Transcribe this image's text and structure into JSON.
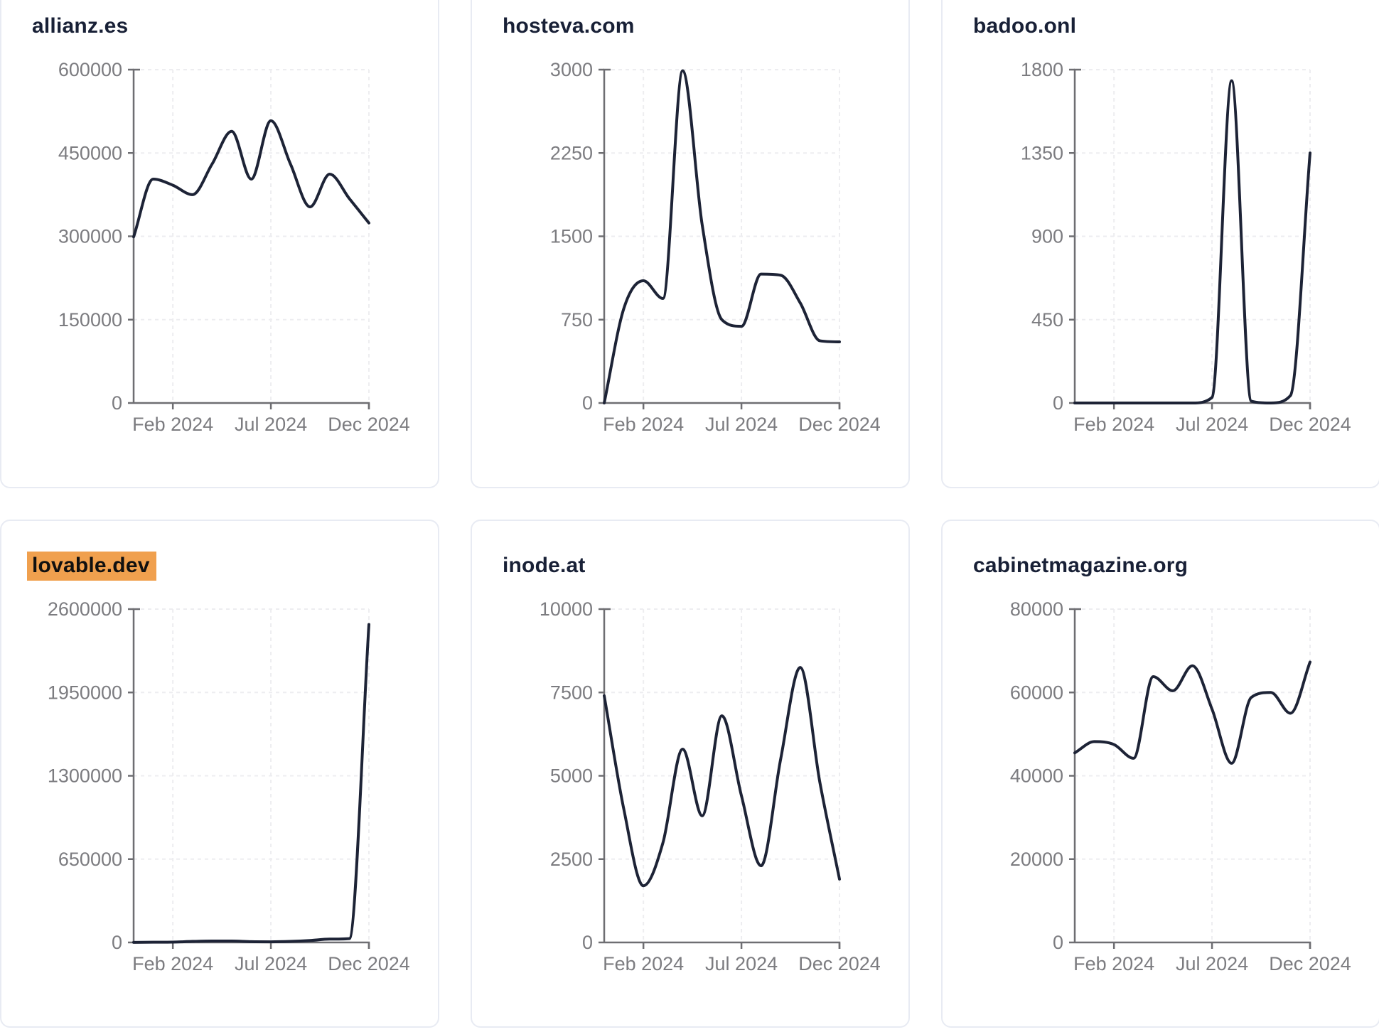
{
  "page": {
    "background": "#ffffff",
    "card_background": "#ffffff",
    "card_border_color": "#e8ebf3",
    "title_color": "#182036",
    "line_color": "#1d2336",
    "axis_color": "#6e6e72",
    "tick_label_color": "#7c7c80",
    "grid_color": "#ededf0",
    "highlight_color": "#f0a04e",
    "highlight_text_color": "#101010"
  },
  "x_axis": {
    "tick_labels": [
      "Feb 2024",
      "Jul 2024",
      "Dec 2024"
    ],
    "tick_indices": [
      2,
      7,
      12
    ]
  },
  "chart_data": [
    {
      "type": "line",
      "title": "allianz.es",
      "highlighted": false,
      "x": [
        "Dec 2023",
        "Jan 2024",
        "Feb 2024",
        "Mar 2024",
        "Apr 2024",
        "May 2024",
        "Jun 2024",
        "Jul 2024",
        "Aug 2024",
        "Sep 2024",
        "Oct 2024",
        "Nov 2024",
        "Dec 2024"
      ],
      "values": [
        299000,
        403000,
        392000,
        375000,
        430000,
        489000,
        403000,
        508000,
        430000,
        353000,
        412000,
        368000,
        324000
      ],
      "y_ticks": [
        0,
        150000,
        300000,
        450000,
        600000
      ],
      "ylim": [
        0,
        600000
      ],
      "x_tick_labels": [
        "Feb 2024",
        "Jul 2024",
        "Dec 2024"
      ],
      "grid": "dashed",
      "legend": "none"
    },
    {
      "type": "line",
      "title": "hosteva.com",
      "highlighted": false,
      "x": [
        "Dec 2023",
        "Jan 2024",
        "Feb 2024",
        "Mar 2024",
        "Apr 2024",
        "May 2024",
        "Jun 2024",
        "Jul 2024",
        "Aug 2024",
        "Sep 2024",
        "Oct 2024",
        "Nov 2024",
        "Dec 2024"
      ],
      "values": [
        0,
        850,
        1100,
        940,
        2990,
        1600,
        750,
        690,
        1160,
        1150,
        900,
        560,
        550
      ],
      "y_ticks": [
        0,
        750,
        1500,
        2250,
        3000
      ],
      "ylim": [
        0,
        3000
      ],
      "x_tick_labels": [
        "Feb 2024",
        "Jul 2024",
        "Dec 2024"
      ],
      "grid": "dashed",
      "legend": "none"
    },
    {
      "type": "line",
      "title": "badoo.onl",
      "highlighted": false,
      "x": [
        "Dec 2023",
        "Jan 2024",
        "Feb 2024",
        "Mar 2024",
        "Apr 2024",
        "May 2024",
        "Jun 2024",
        "Jul 2024",
        "Aug 2024",
        "Sep 2024",
        "Oct 2024",
        "Nov 2024",
        "Dec 2024"
      ],
      "values": [
        0,
        0,
        0,
        0,
        0,
        0,
        0,
        30,
        1740,
        10,
        0,
        40,
        1350
      ],
      "y_ticks": [
        0,
        450,
        900,
        1350,
        1800
      ],
      "ylim": [
        0,
        1800
      ],
      "x_tick_labels": [
        "Feb 2024",
        "Jul 2024",
        "Dec 2024"
      ],
      "grid": "dashed",
      "legend": "none"
    },
    {
      "type": "line",
      "title": "lovable.dev",
      "highlighted": true,
      "x": [
        "Dec 2023",
        "Jan 2024",
        "Feb 2024",
        "Mar 2024",
        "Apr 2024",
        "May 2024",
        "Jun 2024",
        "Jul 2024",
        "Aug 2024",
        "Sep 2024",
        "Oct 2024",
        "Nov 2024",
        "Dec 2024"
      ],
      "values": [
        1000,
        2000,
        3000,
        8000,
        11000,
        11000,
        6000,
        5000,
        8000,
        15000,
        26000,
        30000,
        2480000
      ],
      "y_ticks": [
        0,
        650000,
        1300000,
        1950000,
        2600000
      ],
      "ylim": [
        0,
        2600000
      ],
      "x_tick_labels": [
        "Feb 2024",
        "Jul 2024",
        "Dec 2024"
      ],
      "grid": "dashed",
      "legend": "none"
    },
    {
      "type": "line",
      "title": "inode.at",
      "highlighted": false,
      "x": [
        "Dec 2023",
        "Jan 2024",
        "Feb 2024",
        "Mar 2024",
        "Apr 2024",
        "May 2024",
        "Jun 2024",
        "Jul 2024",
        "Aug 2024",
        "Sep 2024",
        "Oct 2024",
        "Nov 2024",
        "Dec 2024"
      ],
      "values": [
        7400,
        4000,
        1700,
        3000,
        5800,
        3800,
        6800,
        4400,
        2300,
        5500,
        8250,
        4800,
        1900
      ],
      "y_ticks": [
        0,
        2500,
        5000,
        7500,
        10000
      ],
      "ylim": [
        0,
        10000
      ],
      "x_tick_labels": [
        "Feb 2024",
        "Jul 2024",
        "Dec 2024"
      ],
      "grid": "dashed",
      "legend": "none"
    },
    {
      "type": "line",
      "title": "cabinetmagazine.org",
      "highlighted": false,
      "x": [
        "Dec 2023",
        "Jan 2024",
        "Feb 2024",
        "Mar 2024",
        "Apr 2024",
        "May 2024",
        "Jun 2024",
        "Jul 2024",
        "Aug 2024",
        "Sep 2024",
        "Oct 2024",
        "Nov 2024",
        "Dec 2024"
      ],
      "values": [
        45500,
        48200,
        47500,
        44200,
        63800,
        60400,
        66400,
        56000,
        43000,
        58800,
        60000,
        55000,
        67300
      ],
      "y_ticks": [
        0,
        20000,
        40000,
        60000,
        80000
      ],
      "ylim": [
        0,
        80000
      ],
      "x_tick_labels": [
        "Feb 2024",
        "Jul 2024",
        "Dec 2024"
      ],
      "grid": "dashed",
      "legend": "none"
    }
  ]
}
